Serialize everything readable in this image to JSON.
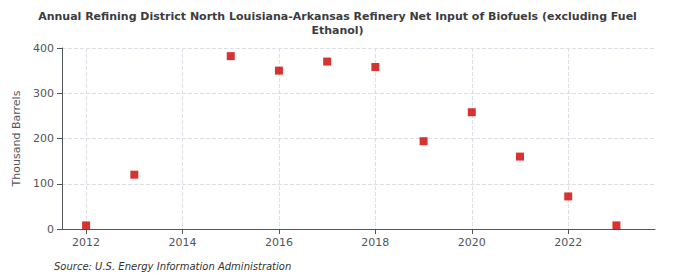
{
  "chart_data": {
    "type": "scatter",
    "title": "Annual Refining District North Louisiana-Arkansas Refinery Net Input of Biofuels (excluding Fuel\nEthanol)",
    "ylabel": "Thousand Barrels",
    "annotation": "Source: U.S. Energy Information Administration",
    "x": [
      2012,
      2013,
      2015,
      2016,
      2017,
      2018,
      2019,
      2020,
      2021,
      2022,
      2023
    ],
    "values": [
      8,
      120,
      382,
      350,
      370,
      358,
      194,
      258,
      160,
      72,
      8
    ],
    "color": "#cc0000",
    "marker": "square",
    "xlim": [
      2011.5,
      2023.8
    ],
    "xticks": [
      2012,
      2014,
      2016,
      2018,
      2020,
      2022
    ],
    "ylim": [
      0,
      400
    ],
    "yticks": [
      0,
      100,
      200,
      300,
      400
    ],
    "grid": true
  }
}
